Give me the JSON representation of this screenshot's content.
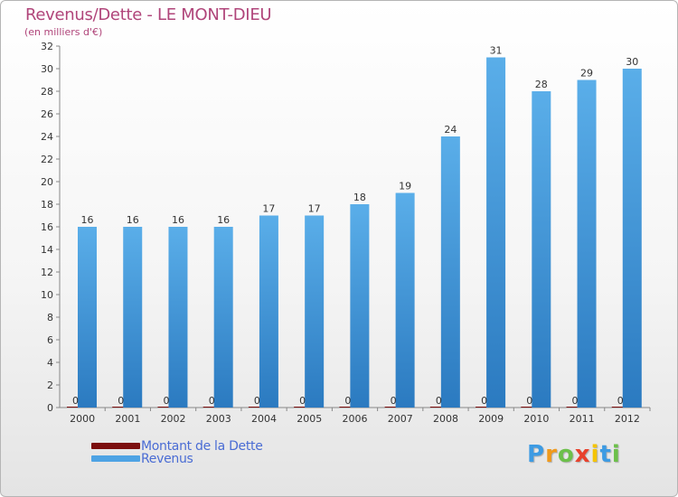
{
  "header": {
    "title": "Revenus/Dette - LE MONT-DIEU",
    "subtitle": "(en milliers d'€)"
  },
  "colors": {
    "title": "#b0457a",
    "dette": "#7b0e0e",
    "revenus": "#4ea3e4",
    "revenus_dark": "#2e7fc6"
  },
  "chart_data": {
    "type": "bar",
    "categories": [
      "2000",
      "2001",
      "2002",
      "2003",
      "2004",
      "2005",
      "2006",
      "2007",
      "2008",
      "2009",
      "2010",
      "2011",
      "2012"
    ],
    "series": [
      {
        "name": "Montant de la Dette",
        "values": [
          0,
          0,
          0,
          0,
          0,
          0,
          0,
          0,
          0,
          0,
          0,
          0,
          0
        ]
      },
      {
        "name": "Revenus",
        "values": [
          16,
          16,
          16,
          16,
          17,
          17,
          18,
          19,
          24,
          31,
          28,
          29,
          30
        ]
      }
    ],
    "yticks": [
      0,
      2,
      4,
      6,
      8,
      10,
      12,
      14,
      16,
      18,
      20,
      22,
      24,
      26,
      28,
      30,
      32
    ],
    "ylim": [
      0,
      32
    ],
    "grid": false,
    "legend_position": "bottom-left"
  },
  "legend": {
    "items": [
      {
        "label": "Montant de la Dette",
        "color": "#7b0e0e"
      },
      {
        "label": "Revenus",
        "color": "#4ea3e4"
      }
    ]
  },
  "logo": {
    "letters": [
      "P",
      "r",
      "o",
      "x",
      "i",
      "t",
      "i"
    ],
    "letter_colors": [
      "#3d9be3",
      "#f09a1b",
      "#6cc04a",
      "#e8412c",
      "#f5c400",
      "#3d9be3",
      "#6cc04a"
    ]
  }
}
